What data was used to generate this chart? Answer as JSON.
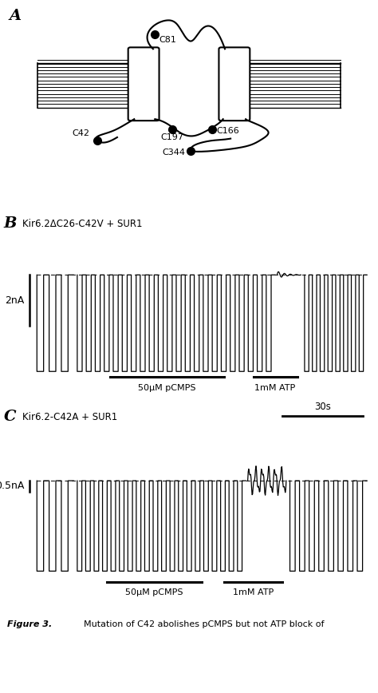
{
  "panel_A_label": "A",
  "panel_B_label": "B",
  "panel_C_label": "C",
  "B_title": "Kir6.2ΔC26-C42V + SUR1",
  "C_title": "Kir6.2-C42A + SUR1",
  "B_ylabel": "2nA",
  "C_ylabel": "0.5nA",
  "label_50uM": "50μM pCMPS",
  "label_1mM": "1mM ATP",
  "label_30s": "30s",
  "figure_caption_bold": "Figure 3.",
  "figure_caption_rest": "    Mutation of C42 abolishes pCMPS but not ATP block of",
  "bg_color": "#ffffff"
}
